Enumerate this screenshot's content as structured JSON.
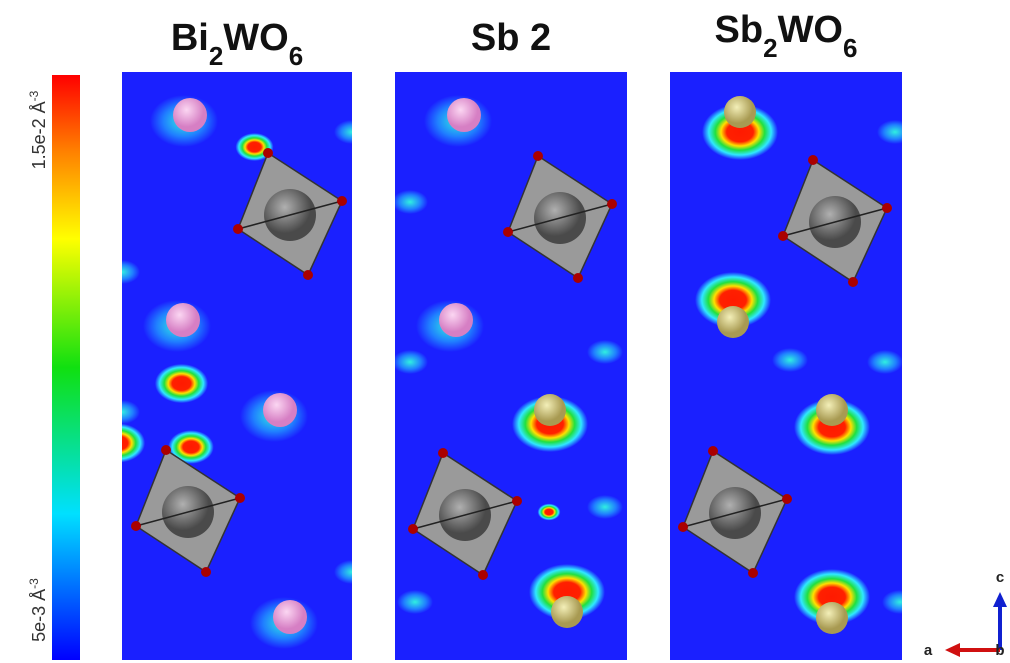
{
  "colorbar": {
    "max_label": [
      "1.5e-2 Å",
      "-3"
    ],
    "min_label": [
      "5e-3 Å",
      "-3"
    ]
  },
  "panels": [
    {
      "title": [
        "Bi",
        "2",
        "WO",
        "6"
      ]
    },
    {
      "title": [
        "Sb 2"
      ]
    },
    {
      "title": [
        "Sb",
        "2",
        "WO",
        "6"
      ]
    }
  ],
  "axes": {
    "c": "c",
    "a": "a",
    "b": "b"
  }
}
